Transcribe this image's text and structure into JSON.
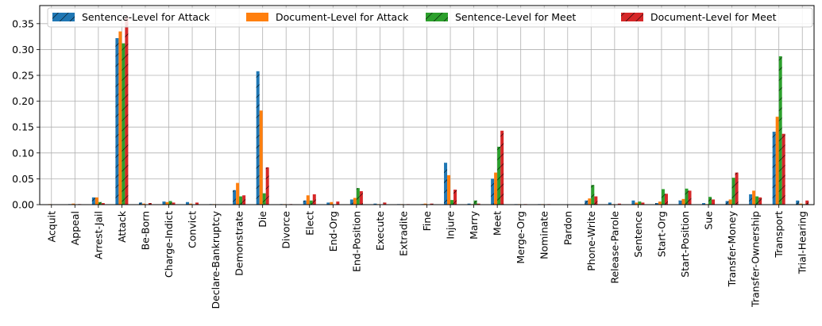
{
  "chart_data": {
    "type": "bar",
    "title": "",
    "xlabel": "",
    "ylabel": "",
    "ylim": [
      0,
      0.385
    ],
    "yticks": [
      0.0,
      0.05,
      0.1,
      0.15,
      0.2,
      0.25,
      0.3,
      0.35
    ],
    "ytick_labels": [
      "0.00",
      "0.05",
      "0.10",
      "0.15",
      "0.20",
      "0.25",
      "0.30",
      "0.35"
    ],
    "grid": true,
    "legend_position": "top",
    "categories": [
      "Acquit",
      "Appeal",
      "Arrest-Jail",
      "Attack",
      "Be-Born",
      "Charge-Indict",
      "Convict",
      "Declare-Bankruptcy",
      "Demonstrate",
      "Die",
      "Divorce",
      "Elect",
      "End-Org",
      "End-Position",
      "Execute",
      "Extradite",
      "Fine",
      "Injure",
      "Marry",
      "Meet",
      "Merge-Org",
      "Nominate",
      "Pardon",
      "Phone-Write",
      "Release-Parole",
      "Sentence",
      "Start-Org",
      "Start-Position",
      "Sue",
      "Transfer-Money",
      "Transfer-Ownership",
      "Transport",
      "Trial-Hearing"
    ],
    "series": [
      {
        "name": "Sentence-Level for Attack",
        "color": "#1f77b4",
        "hatch": true,
        "values": [
          0.0005,
          0.001,
          0.014,
          0.322,
          0.004,
          0.006,
          0.005,
          0.001,
          0.028,
          0.258,
          0.001,
          0.008,
          0.004,
          0.01,
          0.002,
          0.001,
          0.001,
          0.081,
          0.002,
          0.05,
          0.001,
          0.001,
          0.0005,
          0.008,
          0.004,
          0.008,
          0.003,
          0.008,
          0.003,
          0.007,
          0.02,
          0.141,
          0.008
        ]
      },
      {
        "name": "Document-Level for Attack",
        "color": "#ff7f0e",
        "hatch": false,
        "values": [
          0.001,
          0.002,
          0.014,
          0.335,
          0.002,
          0.005,
          0.002,
          0.001,
          0.042,
          0.182,
          0.001,
          0.018,
          0.005,
          0.013,
          0.001,
          0.001,
          0.002,
          0.057,
          0.001,
          0.062,
          0.001,
          0.001,
          0.0005,
          0.012,
          0.001,
          0.004,
          0.006,
          0.011,
          0.001,
          0.01,
          0.027,
          0.17,
          0.002
        ]
      },
      {
        "name": "Sentence-Level for Meet",
        "color": "#2ca02c",
        "hatch": true,
        "values": [
          0.0,
          0.0,
          0.005,
          0.312,
          0.0,
          0.007,
          0.0,
          0.0,
          0.016,
          0.022,
          0.0,
          0.008,
          0.0,
          0.032,
          0.0,
          0.0,
          0.0,
          0.009,
          0.008,
          0.112,
          0.0,
          0.0,
          0.0,
          0.038,
          0.0,
          0.006,
          0.03,
          0.031,
          0.015,
          0.052,
          0.016,
          0.287,
          0.001
        ]
      },
      {
        "name": "Document-Level for Meet",
        "color": "#d62728",
        "hatch": true,
        "values": [
          0.0,
          0.001,
          0.003,
          0.363,
          0.003,
          0.004,
          0.004,
          0.0005,
          0.018,
          0.072,
          0.001,
          0.02,
          0.006,
          0.026,
          0.004,
          0.001,
          0.002,
          0.029,
          0.002,
          0.143,
          0.001,
          0.001,
          0.0,
          0.016,
          0.002,
          0.004,
          0.021,
          0.027,
          0.01,
          0.062,
          0.014,
          0.137,
          0.008
        ]
      }
    ]
  }
}
